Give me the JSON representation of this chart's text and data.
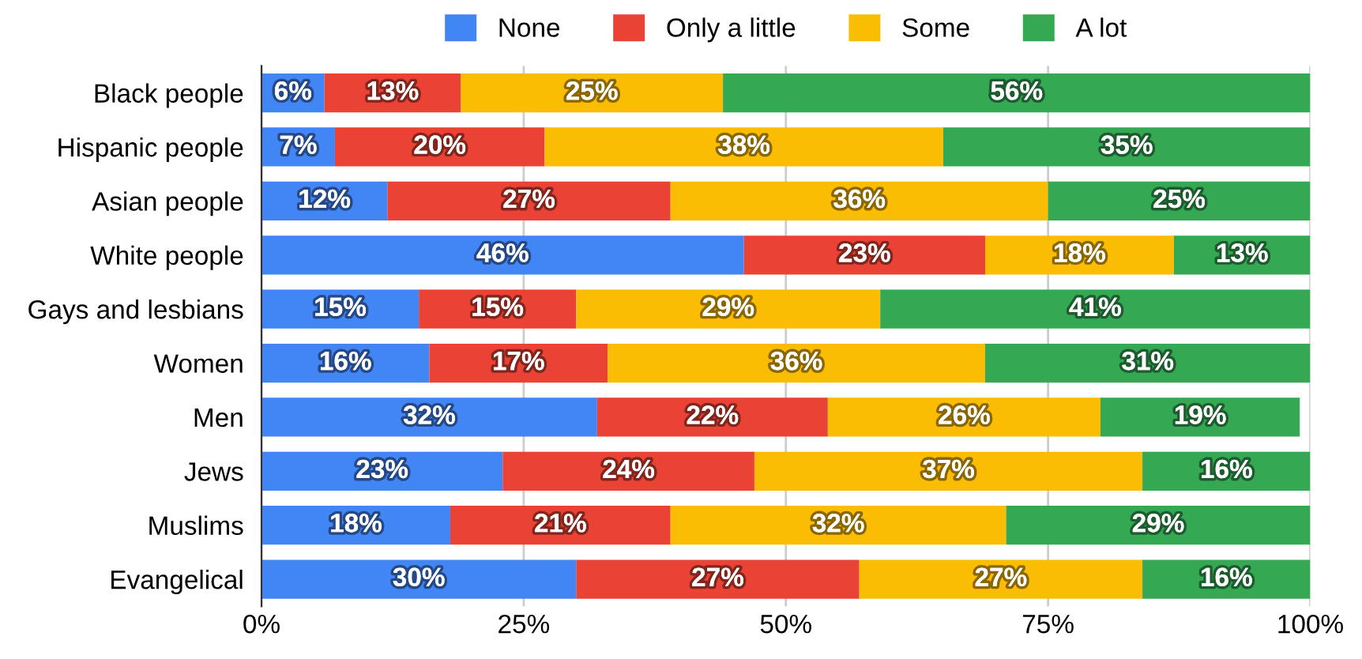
{
  "chart_data": {
    "type": "bar",
    "orientation": "horizontal",
    "stacked": true,
    "categories": [
      "Black people",
      "Hispanic people",
      "Asian people",
      "White people",
      "Gays and lesbians",
      "Women",
      "Men",
      "Jews",
      "Muslims",
      "Evangelical"
    ],
    "series": [
      {
        "name": "None",
        "color": "#4285f4",
        "values": [
          6,
          7,
          12,
          46,
          15,
          16,
          32,
          23,
          18,
          30
        ],
        "value_labels": [
          "6%",
          "7%",
          "12%",
          "46%",
          "15%",
          "16%",
          "32%",
          "23%",
          "18%",
          "30%"
        ]
      },
      {
        "name": "Only a little",
        "color": "#ea4335",
        "values": [
          13,
          20,
          27,
          23,
          15,
          17,
          22,
          24,
          21,
          27
        ],
        "value_labels": [
          "13%",
          "20%",
          "27%",
          "23%",
          "15%",
          "17%",
          "22%",
          "24%",
          "21%",
          "27%"
        ]
      },
      {
        "name": "Some",
        "color": "#fbbc04",
        "values": [
          25,
          38,
          36,
          18,
          29,
          36,
          26,
          37,
          32,
          27
        ],
        "value_labels": [
          "25%",
          "38%",
          "36%",
          "18%",
          "29%",
          "36%",
          "26%",
          "37%",
          "32%",
          "27%"
        ]
      },
      {
        "name": "A lot",
        "color": "#34a853",
        "values": [
          56,
          35,
          25,
          13,
          41,
          31,
          19,
          16,
          29,
          16
        ],
        "value_labels": [
          "56%",
          "35%",
          "25%",
          "13%",
          "41%",
          "31%",
          "19%",
          "16%",
          "29%",
          "16%"
        ]
      }
    ],
    "xlim": [
      0,
      100
    ],
    "xticks": [
      {
        "value": 0,
        "label": "0%"
      },
      {
        "value": 25,
        "label": "25%"
      },
      {
        "value": 50,
        "label": "50%"
      },
      {
        "value": 75,
        "label": "75%"
      },
      {
        "value": 100,
        "label": "100%"
      }
    ],
    "grid": "x",
    "legend": "top"
  }
}
